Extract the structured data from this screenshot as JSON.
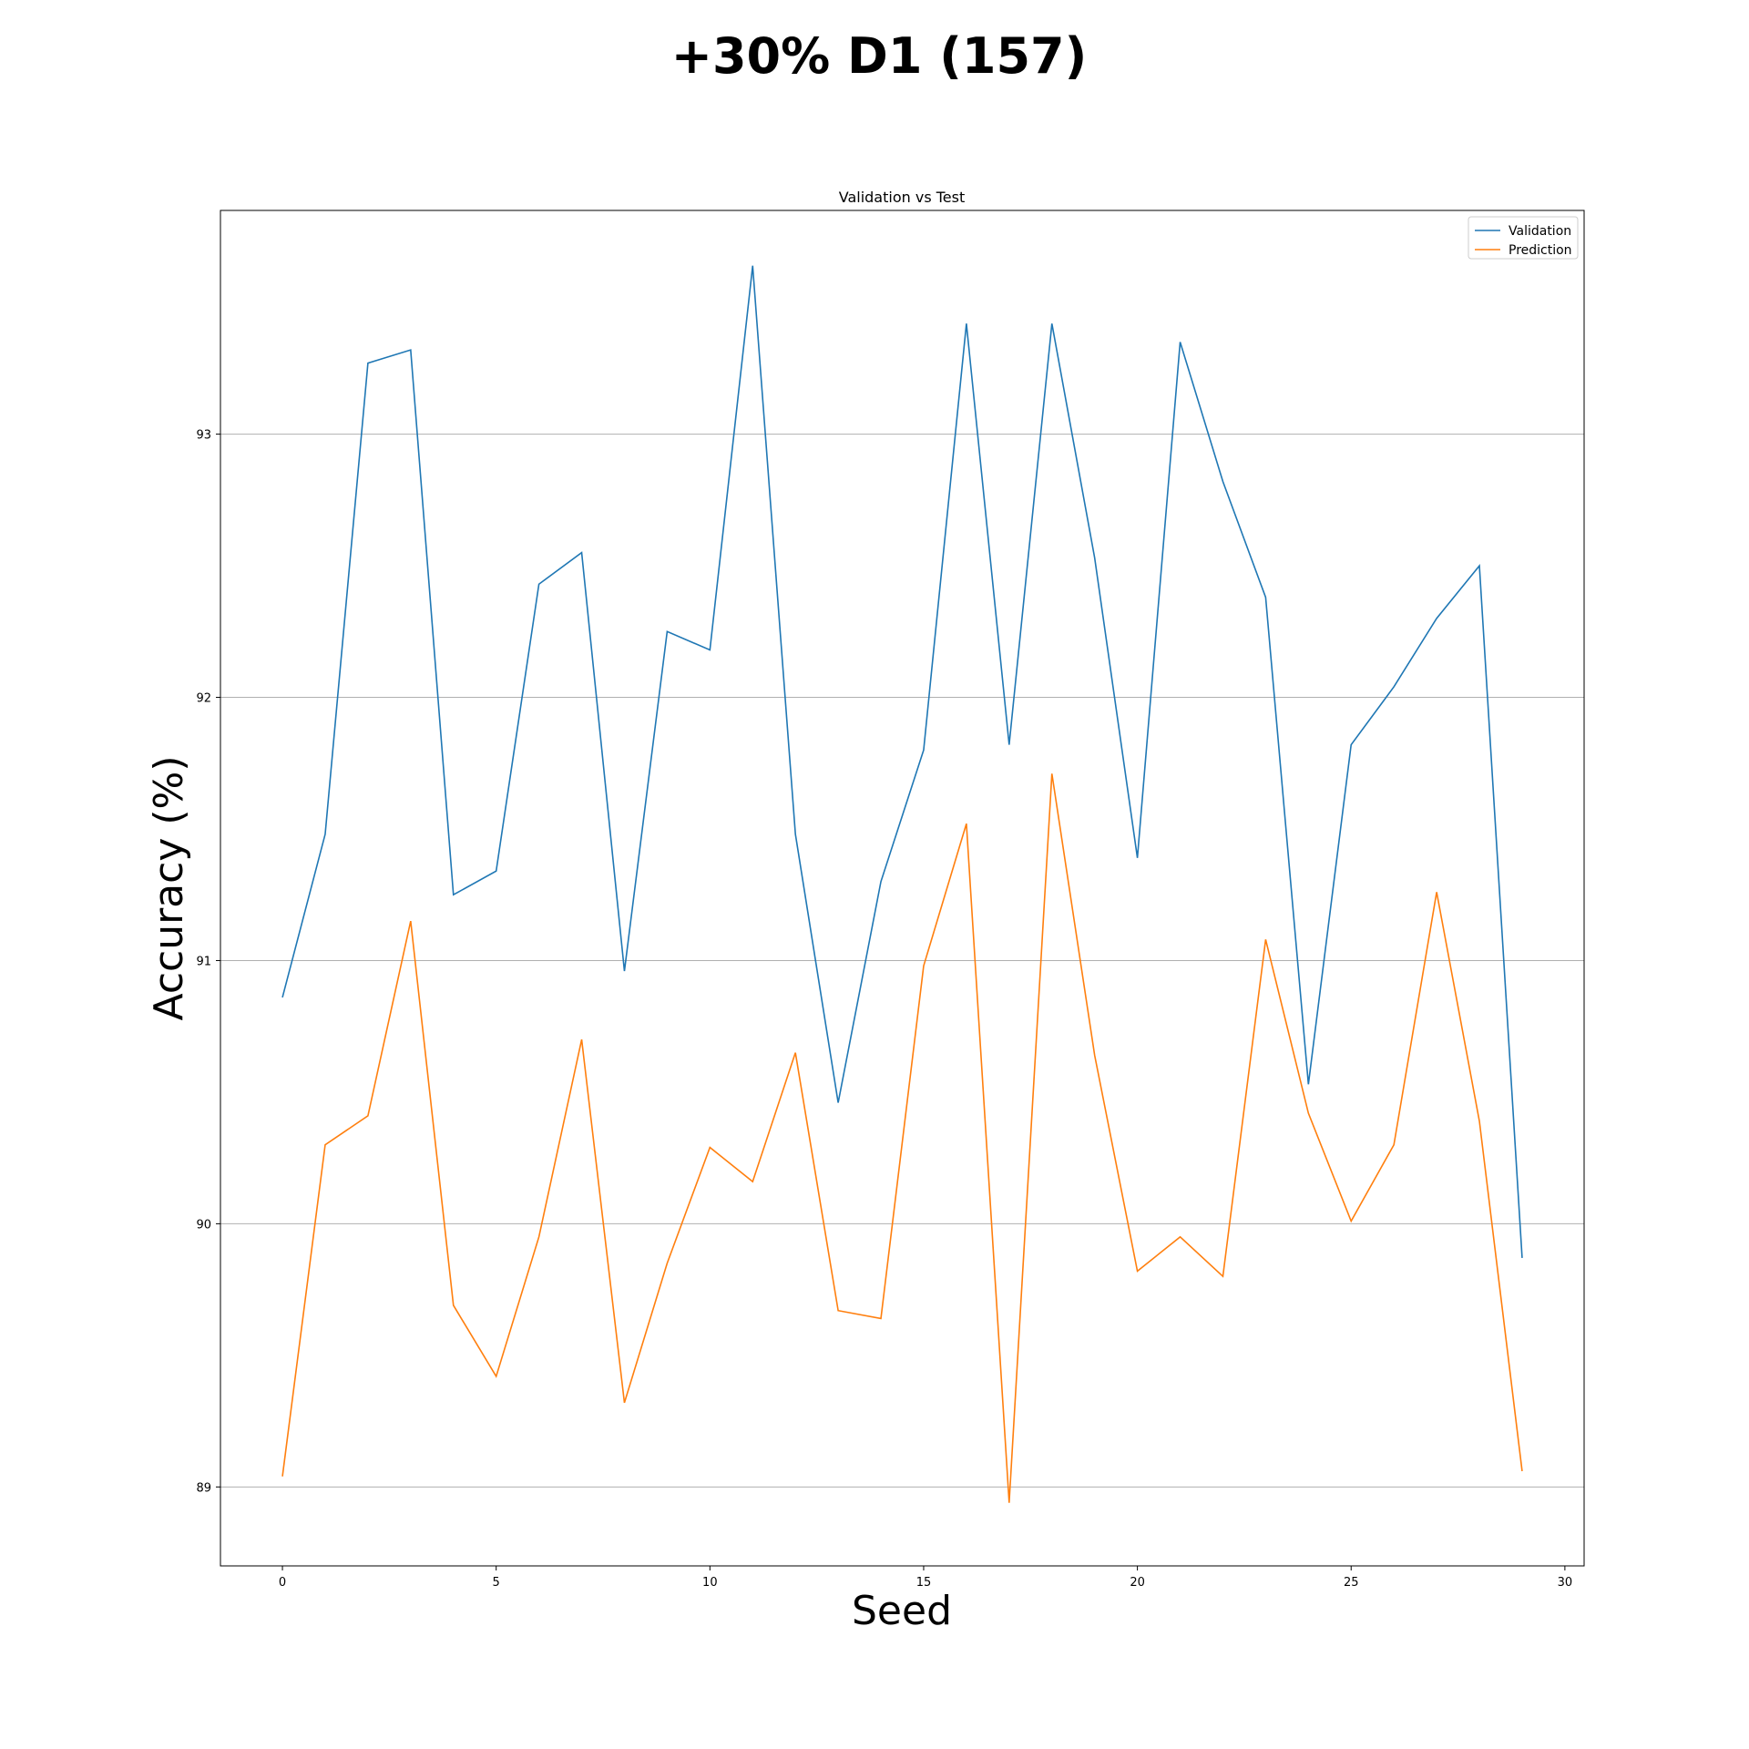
{
  "figure": {
    "suptitle": "+30% D1 (157)"
  },
  "chart_data": {
    "type": "line",
    "title": "Validation vs Test",
    "xlabel": "Seed",
    "ylabel": "Accuracy (%)",
    "xlim": [
      -1.45,
      30.45
    ],
    "ylim": [
      88.7,
      93.85
    ],
    "xticks": [
      0,
      5,
      10,
      15,
      20,
      25,
      30
    ],
    "yticks": [
      89,
      90,
      91,
      92,
      93
    ],
    "grid": "horizontal",
    "legend_position": "top-right",
    "x": [
      0,
      1,
      2,
      3,
      4,
      5,
      6,
      7,
      8,
      9,
      10,
      11,
      12,
      13,
      14,
      15,
      16,
      17,
      18,
      19,
      20,
      21,
      22,
      23,
      24,
      25,
      26,
      27,
      28,
      29
    ],
    "series": [
      {
        "name": "Validation",
        "color": "#1f77b4",
        "values": [
          90.86,
          91.48,
          93.27,
          93.32,
          91.25,
          91.34,
          92.43,
          92.55,
          90.96,
          92.25,
          92.18,
          93.64,
          91.48,
          90.46,
          91.3,
          91.8,
          93.42,
          91.82,
          93.42,
          92.53,
          91.39,
          93.35,
          92.82,
          92.38,
          90.53,
          91.82,
          92.04,
          92.3,
          92.5,
          89.87
        ]
      },
      {
        "name": "Prediction",
        "color": "#ff7f0e",
        "values": [
          89.04,
          90.3,
          90.41,
          91.15,
          89.69,
          89.42,
          89.95,
          90.7,
          89.32,
          89.85,
          90.29,
          90.16,
          90.65,
          89.67,
          89.64,
          90.98,
          91.52,
          88.94,
          91.71,
          90.64,
          89.82,
          89.95,
          89.8,
          91.08,
          90.42,
          90.01,
          90.3,
          91.26,
          90.39,
          89.06
        ]
      }
    ]
  }
}
